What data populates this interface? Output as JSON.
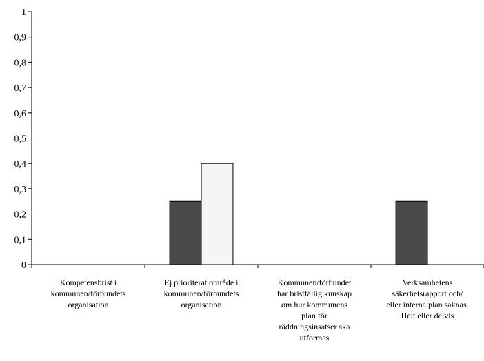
{
  "chart_data": {
    "type": "bar",
    "title": "",
    "xlabel": "",
    "ylabel": "",
    "ylim": [
      0,
      1
    ],
    "yticks": [
      "0",
      "0,1",
      "0,2",
      "0,3",
      "0,4",
      "0,5",
      "0,6",
      "0,7",
      "0,8",
      "0,9",
      "1"
    ],
    "grid": false,
    "legend": "none",
    "categories": [
      "Kompetensbrist i\nkommunen/förbundets\norganisation",
      "Ej prioriterat område i\nkommunen/förbundets\norganisation",
      "Kommunen/förbundet\nhar bristfällig kunskap\nom hur kommunens\nplan för\nräddningsinsatser ska\nutformas",
      "Verksamhetens\nsäkerhetsrapport och/\neller interna plan saknas.\nHelt eller delvis"
    ],
    "series": [
      {
        "values": [
          0,
          0.25,
          0,
          0.25
        ],
        "color": "#4a4a4a"
      },
      {
        "values": [
          0,
          0.4,
          0,
          0
        ],
        "color": "#f5f5f5"
      }
    ]
  }
}
